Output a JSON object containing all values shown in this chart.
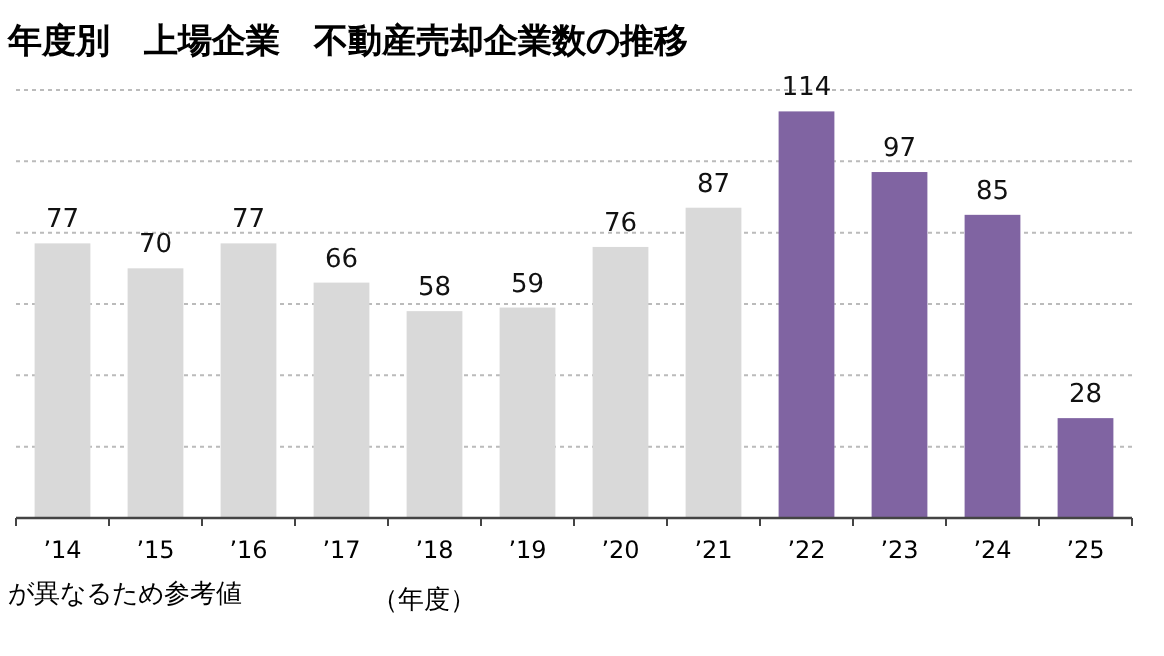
{
  "chart_data": {
    "type": "bar",
    "title": "年度別　上場企業　不動産売却企業数の推移",
    "xlabel": "（年度）",
    "categories": [
      "’14",
      "’15",
      "’16",
      "’17",
      "’18",
      "’19",
      "’20",
      "’21",
      "’22",
      "’23",
      "’24",
      "’25"
    ],
    "values": [
      77,
      70,
      77,
      66,
      58,
      59,
      76,
      87,
      114,
      97,
      85,
      28
    ],
    "colors": [
      "#d9d9d9",
      "#d9d9d9",
      "#d9d9d9",
      "#d9d9d9",
      "#d9d9d9",
      "#d9d9d9",
      "#d9d9d9",
      "#d9d9d9",
      "#8064a2",
      "#8064a2",
      "#8064a2",
      "#8064a2"
    ],
    "ylim": [
      0,
      120
    ],
    "yticks": [
      {
        "value": 0,
        "label": null
      },
      {
        "value": 20,
        "label": null
      },
      {
        "value": 40,
        "label": null
      },
      {
        "value": 60,
        "label": null
      },
      {
        "value": 80,
        "label": null
      },
      {
        "value": 100,
        "label": null
      },
      {
        "value": 120,
        "label": null
      }
    ],
    "grid": "y",
    "tick_labels": "x",
    "data_labels": true,
    "annotations": [
      "が異なるため参考値"
    ]
  }
}
